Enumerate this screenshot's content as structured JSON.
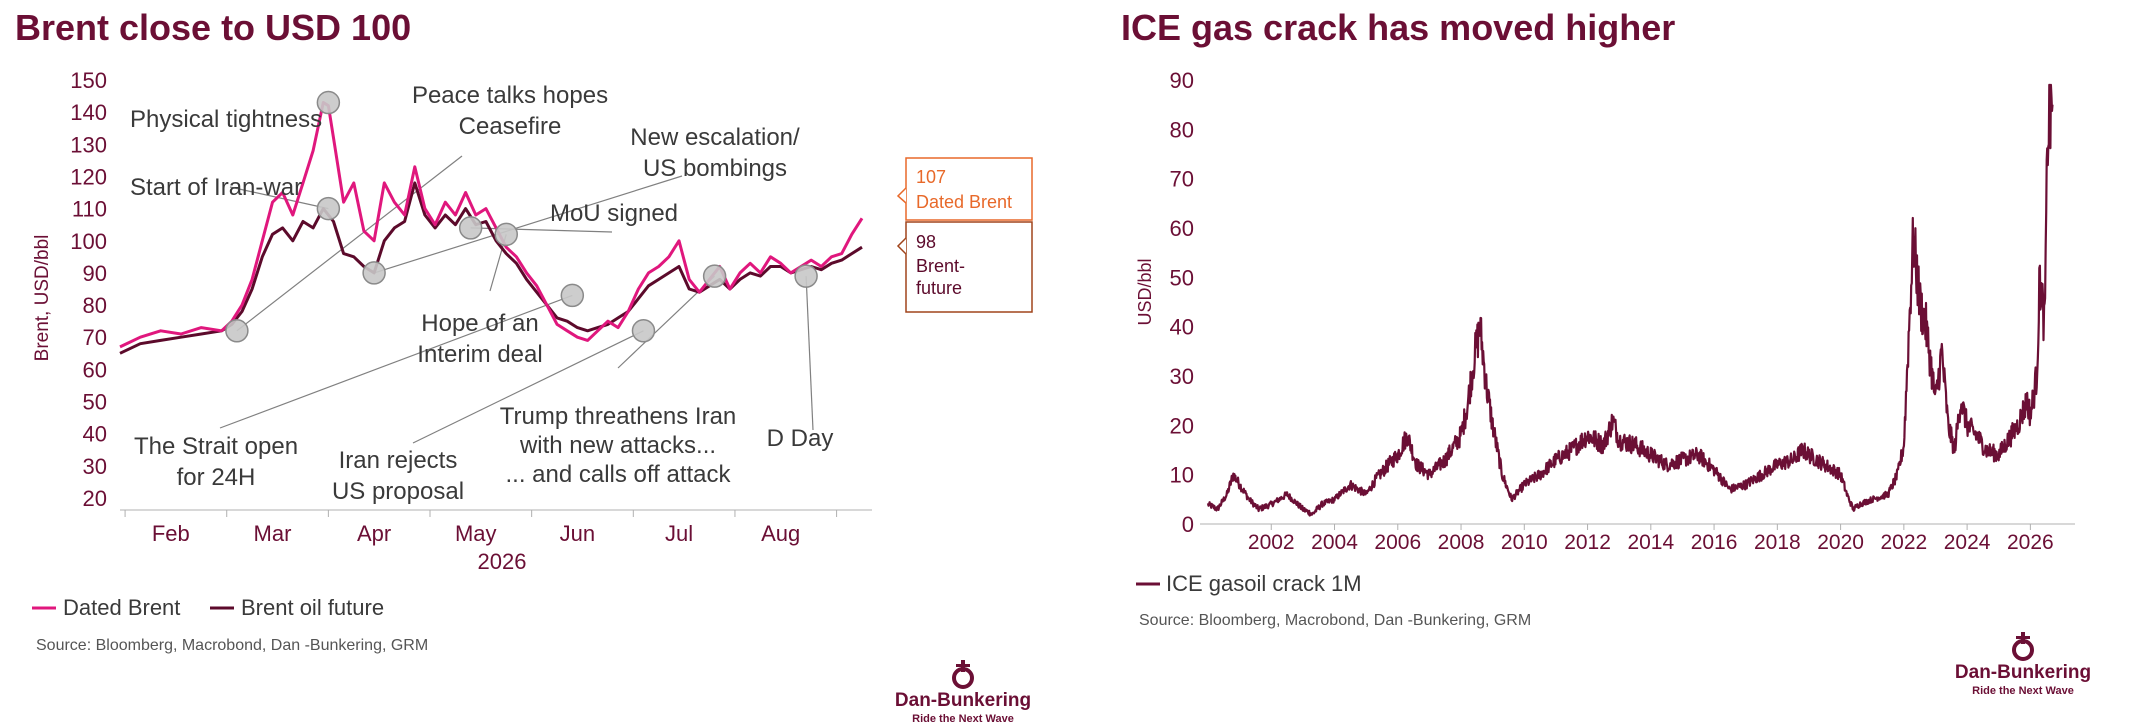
{
  "colors": {
    "dated_brent": "#e0177d",
    "brent_future": "#5c0a2b",
    "gasoil_crack": "#6b0f35",
    "brand": "#6b0f35",
    "marker_fill": "#c8c8c8",
    "callout_brent": "#e8692a",
    "callout_future": "#a0441b"
  },
  "logo": {
    "name": "Dan-Bunkering",
    "tagline": "Ride the Next Wave",
    "icon": "anchor-icon"
  },
  "chart_data": [
    {
      "type": "line",
      "title": "Brent close to USD 100",
      "ylabel": "Brent, USD/bbl",
      "xlabel": "",
      "ylim": [
        20,
        150
      ],
      "yticks": [
        20,
        30,
        40,
        50,
        60,
        70,
        80,
        90,
        100,
        110,
        120,
        130,
        140,
        150
      ],
      "x_tick_labels": [
        "Feb",
        "Mar",
        "Apr",
        "May",
        "Jun",
        "Jul",
        "Aug"
      ],
      "x_tick_positions": [
        1.5,
        2.5,
        3.5,
        4.5,
        5.5,
        6.5,
        7.5
      ],
      "year_label": "2026",
      "grid": false,
      "legend": "bottom-left",
      "series": [
        {
          "name": "Dated Brent",
          "x": [
            1.0,
            1.2,
            1.4,
            1.6,
            1.8,
            2.0,
            2.1,
            2.2,
            2.3,
            2.4,
            2.5,
            2.6,
            2.7,
            2.8,
            2.9,
            3.0,
            3.05,
            3.1,
            3.2,
            3.3,
            3.4,
            3.5,
            3.6,
            3.7,
            3.8,
            3.9,
            4.0,
            4.1,
            4.2,
            4.3,
            4.4,
            4.5,
            4.6,
            4.7,
            4.8,
            4.9,
            5.0,
            5.1,
            5.2,
            5.3,
            5.4,
            5.5,
            5.6,
            5.7,
            5.8,
            5.9,
            6.0,
            6.1,
            6.2,
            6.3,
            6.4,
            6.5,
            6.6,
            6.7,
            6.8,
            6.9,
            7.0,
            7.1,
            7.2,
            7.3,
            7.4,
            7.5,
            7.6,
            7.7,
            7.8,
            7.9,
            8.0,
            8.1,
            8.2,
            8.3
          ],
          "values": [
            67,
            70,
            72,
            71,
            73,
            72,
            75,
            80,
            88,
            100,
            112,
            115,
            108,
            118,
            128,
            143,
            142,
            132,
            112,
            118,
            103,
            100,
            118,
            112,
            108,
            123,
            110,
            105,
            112,
            108,
            115,
            108,
            110,
            104,
            98,
            95,
            90,
            86,
            80,
            74,
            72,
            70,
            69,
            72,
            75,
            73,
            78,
            85,
            90,
            92,
            95,
            100,
            88,
            84,
            88,
            92,
            85,
            90,
            93,
            90,
            95,
            93,
            90,
            92,
            94,
            92,
            95,
            96,
            102,
            107
          ]
        },
        {
          "name": "Brent oil future",
          "x": [
            1.0,
            1.2,
            1.4,
            1.6,
            1.8,
            2.0,
            2.1,
            2.2,
            2.3,
            2.4,
            2.5,
            2.6,
            2.7,
            2.8,
            2.9,
            3.0,
            3.05,
            3.1,
            3.2,
            3.3,
            3.4,
            3.5,
            3.6,
            3.7,
            3.8,
            3.9,
            4.0,
            4.1,
            4.2,
            4.3,
            4.4,
            4.5,
            4.6,
            4.7,
            4.8,
            4.9,
            5.0,
            5.1,
            5.2,
            5.3,
            5.4,
            5.5,
            5.6,
            5.7,
            5.8,
            5.9,
            6.0,
            6.1,
            6.2,
            6.3,
            6.4,
            6.5,
            6.6,
            6.7,
            6.8,
            6.9,
            7.0,
            7.1,
            7.2,
            7.3,
            7.4,
            7.5,
            7.6,
            7.7,
            7.8,
            7.9,
            8.0,
            8.1,
            8.2,
            8.3
          ],
          "values": [
            65,
            68,
            69,
            70,
            71,
            72,
            74,
            78,
            85,
            95,
            102,
            104,
            100,
            106,
            104,
            110,
            108,
            106,
            96,
            95,
            92,
            90,
            100,
            104,
            106,
            118,
            108,
            104,
            108,
            105,
            110,
            105,
            106,
            100,
            96,
            93,
            88,
            84,
            80,
            76,
            75,
            73,
            72,
            73,
            74,
            76,
            78,
            82,
            86,
            88,
            90,
            92,
            85,
            84,
            86,
            88,
            85,
            88,
            90,
            89,
            92,
            92,
            90,
            91,
            92,
            91,
            93,
            94,
            96,
            98
          ]
        }
      ],
      "markers": [
        {
          "x": 3.05,
          "y": 143
        },
        {
          "x": 2.15,
          "y": 72
        },
        {
          "x": 3.05,
          "y": 110
        },
        {
          "x": 3.5,
          "y": 90
        },
        {
          "x": 4.45,
          "y": 104
        },
        {
          "x": 4.8,
          "y": 102
        },
        {
          "x": 5.45,
          "y": 83
        },
        {
          "x": 6.15,
          "y": 72
        },
        {
          "x": 6.85,
          "y": 89
        },
        {
          "x": 7.75,
          "y": 89
        }
      ],
      "annotations": [
        {
          "lines": [
            "Physical tightness"
          ]
        },
        {
          "lines": [
            "Peace talks hopes",
            "Ceasefire"
          ]
        },
        {
          "lines": [
            "Start of Iran-war"
          ]
        },
        {
          "lines": [
            "New escalation/",
            "US bombings"
          ]
        },
        {
          "lines": [
            "MoU signed"
          ]
        },
        {
          "lines": [
            "Hope of an",
            "Interim deal"
          ]
        },
        {
          "lines": [
            "The Strait open",
            "for 24H"
          ]
        },
        {
          "lines": [
            "Iran rejects",
            "US proposal"
          ]
        },
        {
          "lines": [
            "Trump threathens Iran",
            "with new attacks...",
            "... and calls off attack"
          ]
        },
        {
          "lines": [
            "D Day"
          ]
        }
      ],
      "callouts": [
        {
          "value": "107",
          "label": "Dated Brent"
        },
        {
          "value": "98",
          "label": "Brent-future"
        }
      ],
      "source": "Source: Bloomberg, Macrobond, Dan -Bunkering, GRM"
    },
    {
      "type": "line",
      "title": "ICE gas crack has moved higher",
      "ylabel": "USD/bbl",
      "xlabel": "",
      "ylim": [
        0,
        90
      ],
      "yticks": [
        0,
        10,
        20,
        30,
        40,
        50,
        60,
        70,
        80,
        90
      ],
      "xlim": [
        2000,
        2027
      ],
      "x_tick_labels": [
        "2002",
        "2004",
        "2006",
        "2008",
        "2010",
        "2012",
        "2014",
        "2016",
        "2018",
        "2020",
        "2022",
        "2024",
        "2026"
      ],
      "grid": false,
      "legend": "bottom-left",
      "series": [
        {
          "name": "ICE gasoil crack 1M",
          "x": [
            2000.0,
            2000.3,
            2000.6,
            2000.8,
            2001.0,
            2001.3,
            2001.6,
            2002.0,
            2002.5,
            2003.0,
            2003.3,
            2003.6,
            2004.0,
            2004.5,
            2005.0,
            2005.3,
            2005.7,
            2006.0,
            2006.3,
            2006.6,
            2007.0,
            2007.5,
            2008.0,
            2008.2,
            2008.4,
            2008.6,
            2008.8,
            2009.0,
            2009.3,
            2009.6,
            2010.0,
            2010.5,
            2011.0,
            2011.5,
            2012.0,
            2012.5,
            2012.8,
            2013.0,
            2013.5,
            2014.0,
            2014.5,
            2015.0,
            2015.5,
            2016.0,
            2016.5,
            2017.0,
            2017.5,
            2018.0,
            2018.5,
            2018.8,
            2019.0,
            2019.5,
            2020.0,
            2020.2,
            2020.4,
            2020.6,
            2021.0,
            2021.5,
            2021.8,
            2022.0,
            2022.2,
            2022.3,
            2022.5,
            2022.7,
            2022.9,
            2023.0,
            2023.2,
            2023.4,
            2023.6,
            2023.8,
            2024.0,
            2024.3,
            2024.6,
            2025.0,
            2025.3,
            2025.6,
            2025.9,
            2026.0,
            2026.2,
            2026.3,
            2026.45,
            2026.55,
            2026.7
          ],
          "values": [
            4,
            3,
            6,
            10,
            8,
            5,
            3,
            4,
            6,
            3,
            2,
            4,
            5,
            8,
            6,
            9,
            12,
            14,
            18,
            12,
            10,
            13,
            18,
            24,
            33,
            40,
            28,
            20,
            10,
            5,
            8,
            10,
            13,
            15,
            18,
            16,
            21,
            17,
            16,
            14,
            12,
            13,
            14,
            11,
            7,
            8,
            10,
            12,
            13,
            15,
            14,
            12,
            10,
            6,
            3,
            4,
            5,
            6,
            10,
            16,
            45,
            58,
            45,
            40,
            30,
            25,
            35,
            20,
            15,
            25,
            20,
            18,
            15,
            14,
            17,
            20,
            25,
            22,
            30,
            50,
            40,
            80,
            85
          ]
        }
      ],
      "source": "Source: Bloomberg, Macrobond, Dan -Bunkering, GRM"
    }
  ]
}
